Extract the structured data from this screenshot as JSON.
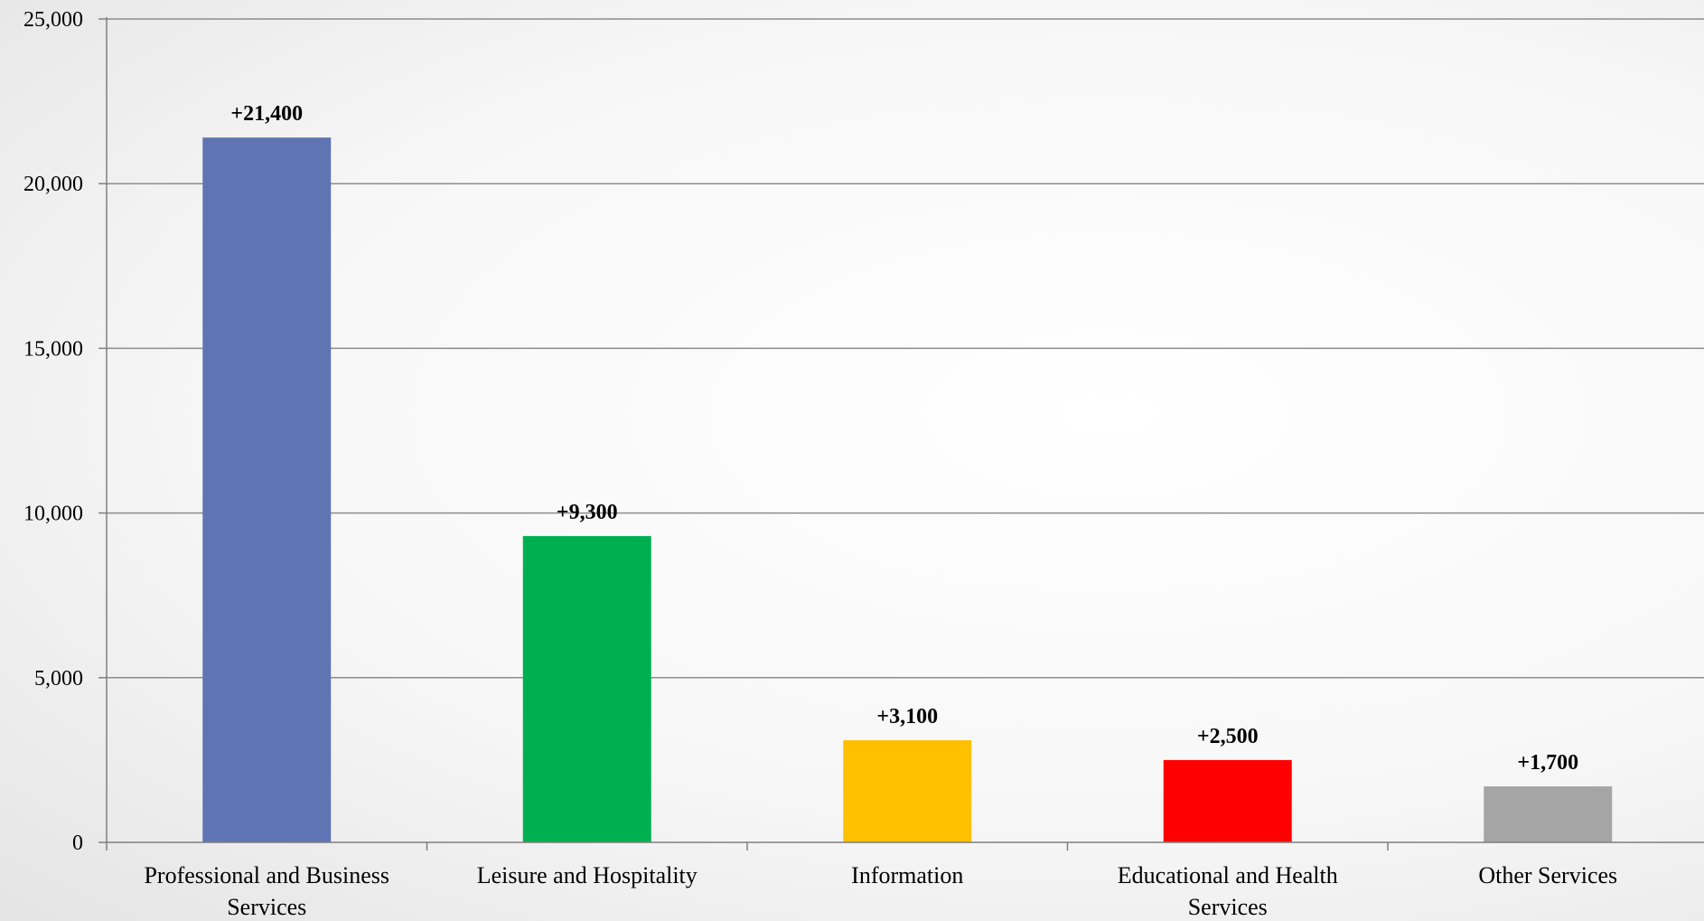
{
  "chart_data": {
    "type": "bar",
    "title": "",
    "xlabel": "",
    "ylabel": "",
    "categories": [
      "Professional and Business Services",
      "Leisure and Hospitality",
      "Information",
      "Educational and Health Services",
      "Other Services"
    ],
    "category_lines": [
      [
        "Professional and Business",
        "Services"
      ],
      [
        "Leisure and Hospitality"
      ],
      [
        "Information"
      ],
      [
        "Educational and Health",
        "Services"
      ],
      [
        "Other Services"
      ]
    ],
    "values": [
      21400,
      9300,
      3100,
      2500,
      1700
    ],
    "data_labels": [
      "+21,400",
      "+9,300",
      "+3,100",
      "+2,500",
      "+1,700"
    ],
    "colors": [
      "#5f75b3",
      "#00b050",
      "#ffc000",
      "#ff0000",
      "#a5a5a5"
    ],
    "ylim": [
      0,
      25000
    ],
    "yticks": [
      0,
      5000,
      10000,
      15000,
      20000,
      25000
    ],
    "ytick_labels": [
      "0",
      "5,000",
      "10,000",
      "15,000",
      "20,000",
      "25,000"
    ],
    "grid": true,
    "legend": "none"
  }
}
